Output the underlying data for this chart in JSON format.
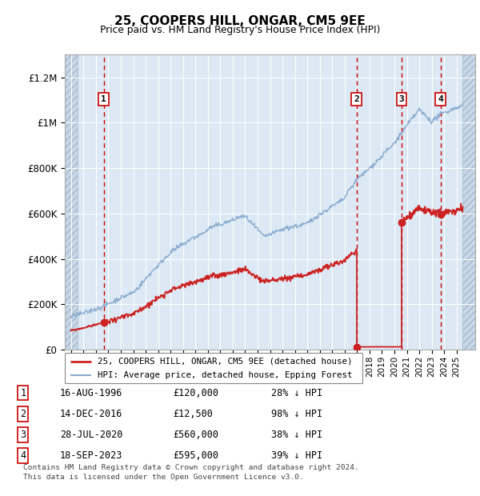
{
  "title": "25, COOPERS HILL, ONGAR, CM5 9EE",
  "subtitle": "Price paid vs. HM Land Registry's House Price Index (HPI)",
  "ylim": [
    0,
    1300000
  ],
  "yticks": [
    0,
    200000,
    400000,
    600000,
    800000,
    1000000,
    1200000
  ],
  "ytick_labels": [
    "£0",
    "£200K",
    "£400K",
    "£600K",
    "£800K",
    "£1M",
    "£1.2M"
  ],
  "xlim_start": 1993.5,
  "xlim_end": 2026.5,
  "background_color": "#ffffff",
  "plot_bg_color": "#dce9f5",
  "grid_color": "#ffffff",
  "sale_points": [
    {
      "date": 1996.62,
      "price": 120000,
      "label": "1"
    },
    {
      "date": 2016.95,
      "price": 12500,
      "label": "2"
    },
    {
      "date": 2020.57,
      "price": 560000,
      "label": "3"
    },
    {
      "date": 2023.71,
      "price": 595000,
      "label": "4"
    }
  ],
  "legend_line1": "25, COOPERS HILL, ONGAR, CM5 9EE (detached house)",
  "legend_line2": "HPI: Average price, detached house, Epping Forest",
  "table_rows": [
    {
      "num": "1",
      "date": "16-AUG-1996",
      "price": "£120,000",
      "hpi": "28% ↓ HPI"
    },
    {
      "num": "2",
      "date": "14-DEC-2016",
      "price": "£12,500",
      "hpi": "98% ↓ HPI"
    },
    {
      "num": "3",
      "date": "28-JUL-2020",
      "price": "£560,000",
      "hpi": "38% ↓ HPI"
    },
    {
      "num": "4",
      "date": "18-SEP-2023",
      "price": "£595,000",
      "hpi": "39% ↓ HPI"
    }
  ],
  "footer_line1": "Contains HM Land Registry data © Crown copyright and database right 2024.",
  "footer_line2": "This data is licensed under the Open Government Licence v3.0."
}
